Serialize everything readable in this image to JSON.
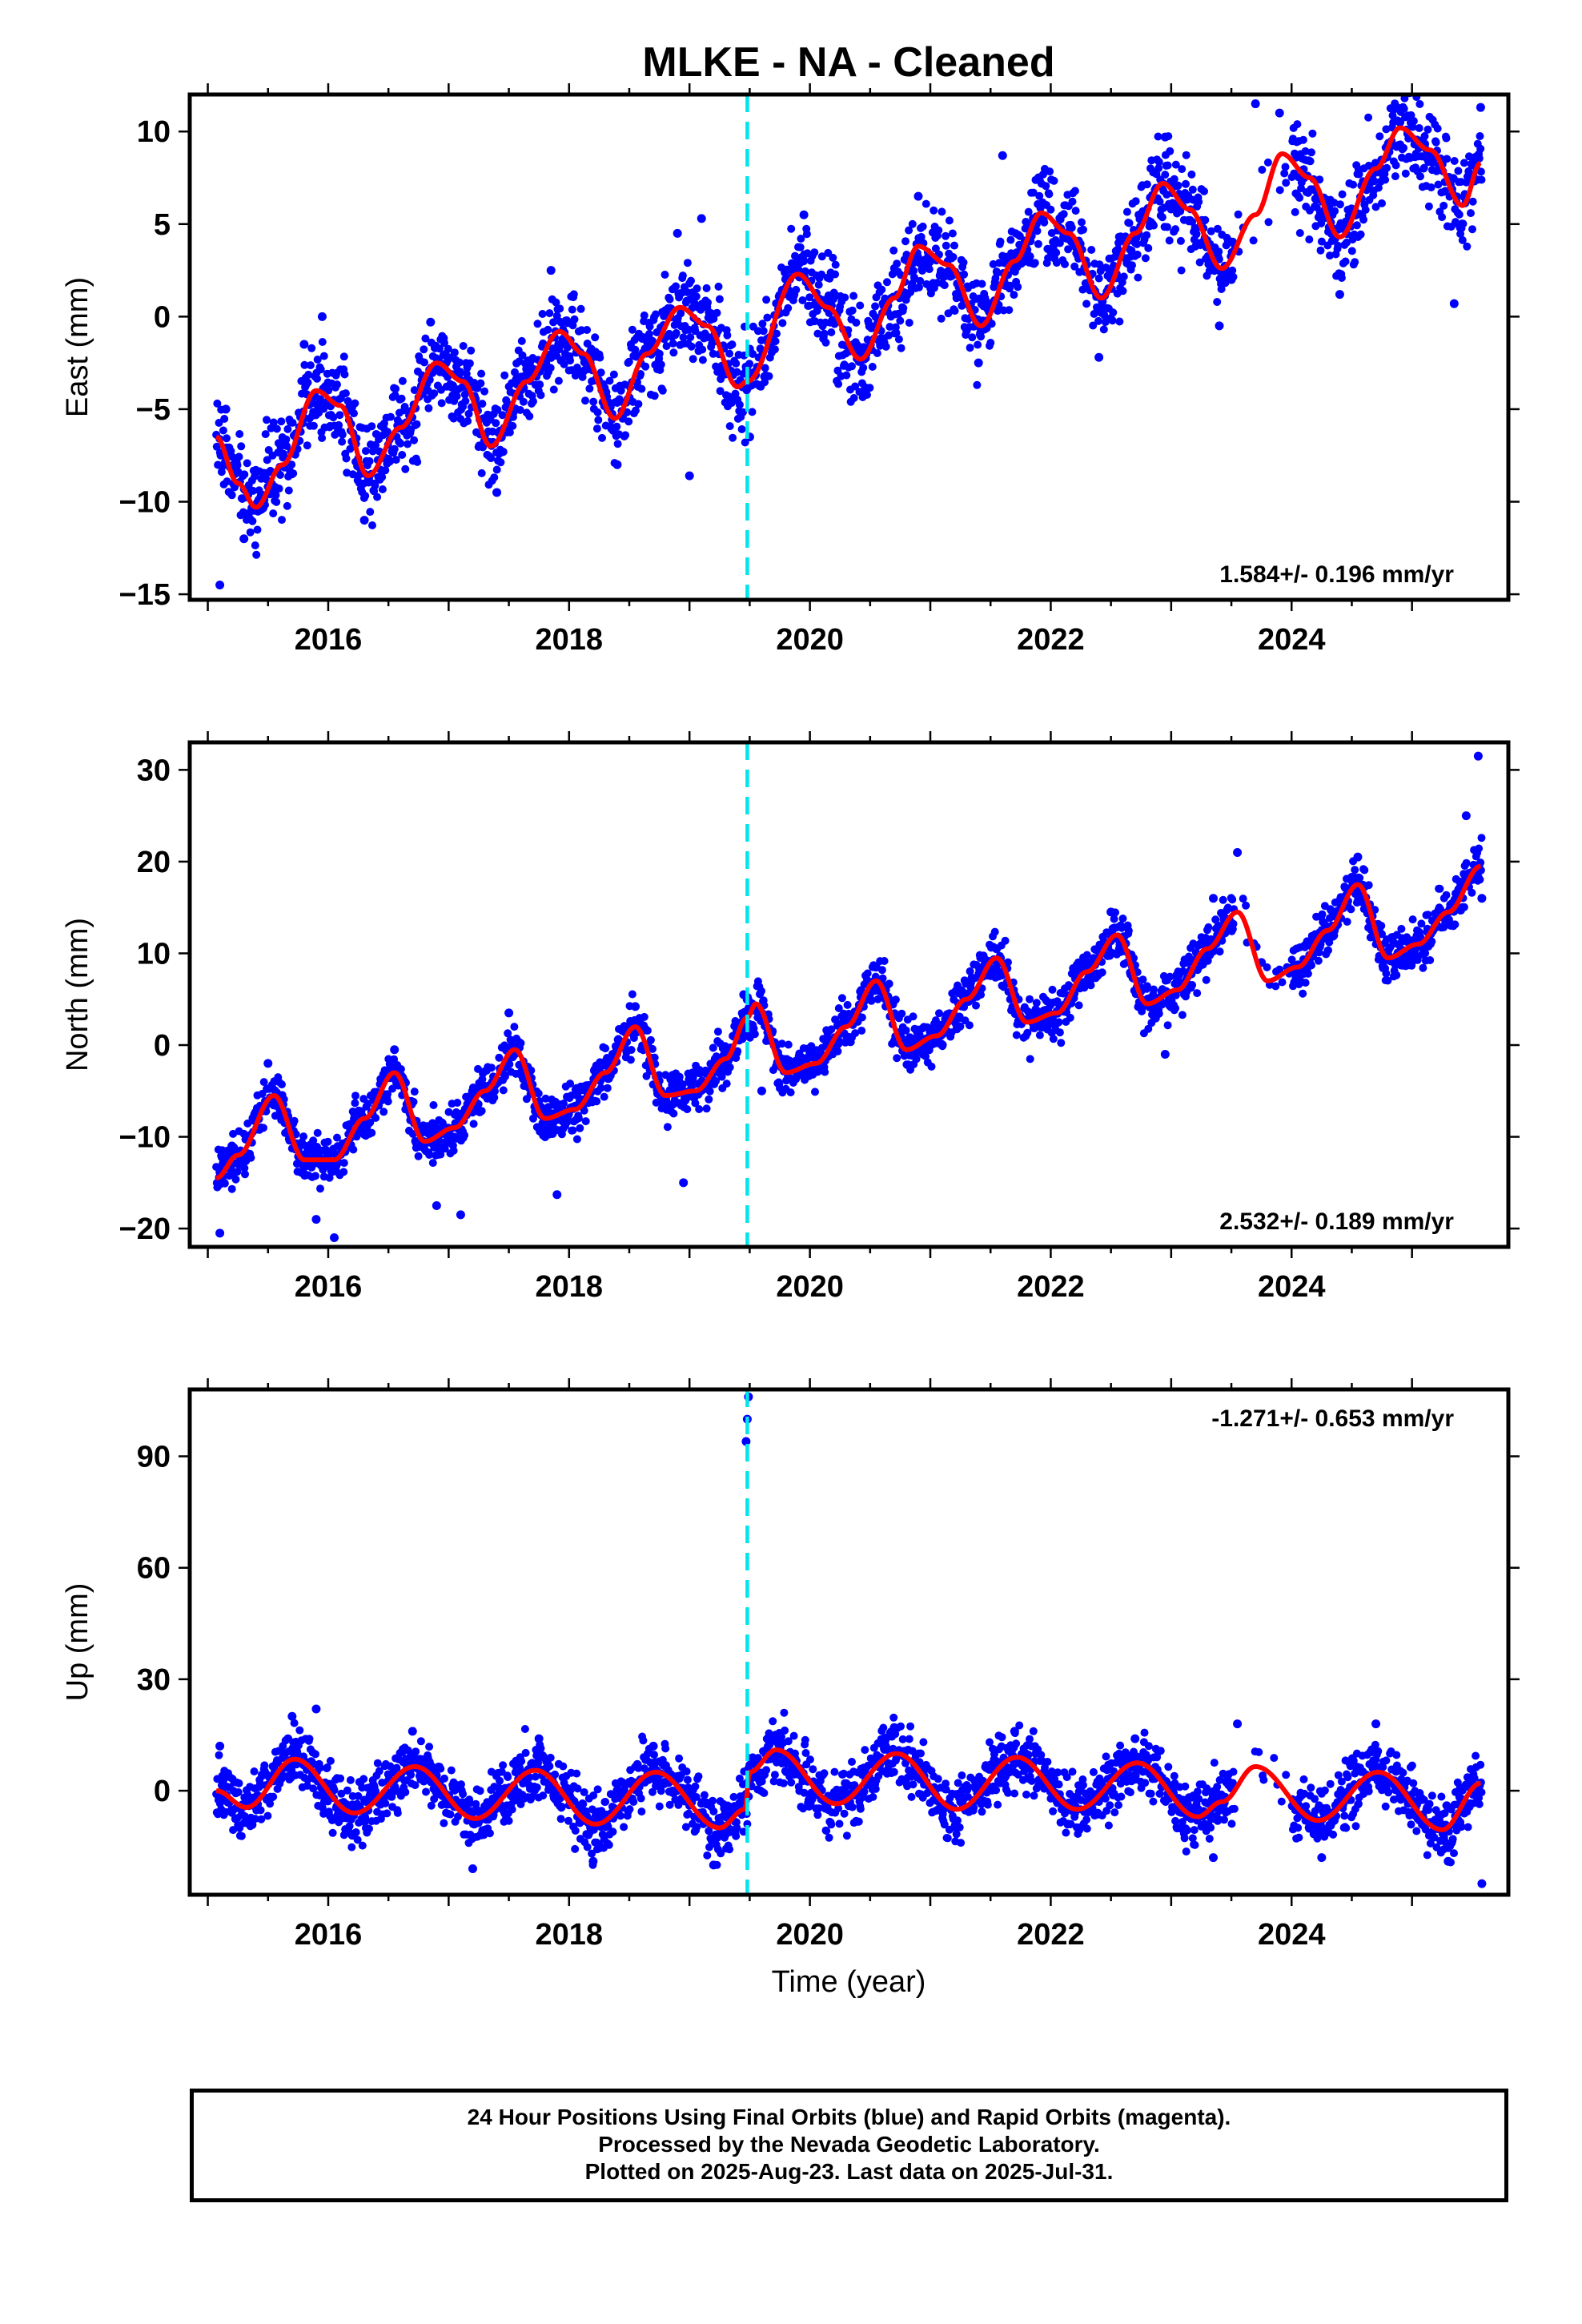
{
  "title": "MLKE  - NA - Cleaned",
  "xlabel": "Time (year)",
  "colors": {
    "points": "#0000ff",
    "model": "#ff0000",
    "break": "#00e5ee",
    "frame": "#000000"
  },
  "chart_data": [
    {
      "type": "scatter",
      "panel": "east",
      "ylabel": "East (mm)",
      "xlim": [
        2014.85,
        2025.8
      ],
      "ylim": [
        -15.3,
        12.0
      ],
      "yticks": [
        -15,
        -10,
        -5,
        0,
        5,
        10
      ],
      "xticks": [
        2016,
        2018,
        2020,
        2022,
        2024
      ],
      "rate_label": "1.584+/- 0.196 mm/yr",
      "rate_position": "bottom-right",
      "break_x": 2019.48,
      "model": {
        "x": [
          2015.07,
          2015.25,
          2015.4,
          2015.62,
          2015.9,
          2016.1,
          2016.33,
          2016.6,
          2016.9,
          2017.12,
          2017.35,
          2017.65,
          2017.92,
          2018.12,
          2018.38,
          2018.65,
          2018.92,
          2019.15,
          2019.4,
          2019.48,
          2019.9,
          2020.15,
          2020.42,
          2020.7,
          2020.9,
          2021.15,
          2021.42,
          2021.7,
          2021.92,
          2022.15,
          2022.42,
          2022.7,
          2022.93,
          2023.15,
          2023.42,
          2023.7,
          2023.92,
          2024.15,
          2024.4,
          2024.7,
          2024.9,
          2025.15,
          2025.42,
          2025.57
        ],
        "y": [
          -6.5,
          -9.0,
          -10.3,
          -8.0,
          -4.0,
          -4.8,
          -8.6,
          -6.0,
          -2.5,
          -3.5,
          -7.0,
          -3.5,
          -0.8,
          -2.0,
          -5.5,
          -2.0,
          0.5,
          -0.5,
          -3.8,
          -3.5,
          2.3,
          0.5,
          -2.3,
          1.0,
          3.8,
          2.8,
          -0.5,
          3.0,
          5.6,
          4.5,
          1.0,
          4.5,
          7.2,
          5.8,
          2.6,
          5.5,
          8.8,
          7.5,
          4.3,
          8.0,
          10.2,
          9.0,
          6.0,
          8.3
        ]
      },
      "points": [
        {
          "x": 2015.1,
          "y": -14.5
        },
        {
          "x": 2015.15,
          "y": -5.0
        },
        {
          "x": 2015.3,
          "y": -12.0
        },
        {
          "x": 2015.8,
          "y": -1.5
        },
        {
          "x": 2015.95,
          "y": 0.0
        },
        {
          "x": 2016.3,
          "y": -11.0
        },
        {
          "x": 2016.85,
          "y": -0.3
        },
        {
          "x": 2017.4,
          "y": -9.5
        },
        {
          "x": 2017.85,
          "y": 2.5
        },
        {
          "x": 2018.4,
          "y": -8.0
        },
        {
          "x": 2018.9,
          "y": 4.5
        },
        {
          "x": 2019.1,
          "y": 5.3
        },
        {
          "x": 2019.0,
          "y": -8.6
        },
        {
          "x": 2019.5,
          "y": -6.5
        },
        {
          "x": 2019.95,
          "y": 5.5
        },
        {
          "x": 2020.45,
          "y": -4.0
        },
        {
          "x": 2020.9,
          "y": 6.5
        },
        {
          "x": 2021.4,
          "y": -2.5
        },
        {
          "x": 2021.6,
          "y": 8.7
        },
        {
          "x": 2021.9,
          "y": 7.5
        },
        {
          "x": 2022.4,
          "y": -2.2
        },
        {
          "x": 2022.95,
          "y": 9.7
        },
        {
          "x": 2023.4,
          "y": -0.5
        },
        {
          "x": 2023.5,
          "y": 2.0
        },
        {
          "x": 2023.7,
          "y": 11.5
        },
        {
          "x": 2023.9,
          "y": 11.0
        },
        {
          "x": 2024.4,
          "y": 1.2
        },
        {
          "x": 2024.9,
          "y": 10.5
        },
        {
          "x": 2025.35,
          "y": 0.7
        },
        {
          "x": 2025.57,
          "y": 11.3
        }
      ]
    },
    {
      "type": "scatter",
      "panel": "north",
      "ylabel": "North (mm)",
      "xlim": [
        2014.85,
        2025.8
      ],
      "ylim": [
        -22.0,
        33.0
      ],
      "yticks": [
        -20,
        -10,
        0,
        10,
        20,
        30
      ],
      "xticks": [
        2016,
        2018,
        2020,
        2022,
        2024
      ],
      "rate_label": "2.532+/- 0.189 mm/yr",
      "rate_position": "bottom-right",
      "break_x": 2019.48,
      "model": {
        "x": [
          2015.07,
          2015.25,
          2015.55,
          2015.8,
          2016.05,
          2016.3,
          2016.55,
          2016.8,
          2017.05,
          2017.3,
          2017.55,
          2017.8,
          2018.05,
          2018.3,
          2018.55,
          2018.8,
          2019.05,
          2019.3,
          2019.48,
          2019.55,
          2019.8,
          2020.05,
          2020.3,
          2020.55,
          2020.8,
          2021.05,
          2021.3,
          2021.55,
          2021.8,
          2022.05,
          2022.3,
          2022.55,
          2022.8,
          2023.05,
          2023.3,
          2023.55,
          2023.8,
          2024.05,
          2024.3,
          2024.55,
          2024.8,
          2025.05,
          2025.3,
          2025.57
        ],
        "y": [
          -14.5,
          -12.0,
          -5.5,
          -12.5,
          -12.5,
          -8.0,
          -3.0,
          -10.5,
          -9.0,
          -5.0,
          -0.5,
          -8.0,
          -7.0,
          -3.0,
          2.0,
          -5.5,
          -5.0,
          -1.5,
          3.0,
          4.5,
          -3.0,
          -2.0,
          2.0,
          7.0,
          -0.5,
          1.0,
          5.0,
          9.5,
          2.5,
          3.5,
          8.0,
          12.0,
          4.5,
          6.0,
          10.5,
          14.5,
          7.0,
          8.5,
          12.5,
          17.5,
          9.5,
          11.0,
          14.5,
          19.5
        ]
      },
      "points": [
        {
          "x": 2015.1,
          "y": -20.5
        },
        {
          "x": 2015.2,
          "y": -11.0
        },
        {
          "x": 2015.5,
          "y": -2.0
        },
        {
          "x": 2015.9,
          "y": -19.0
        },
        {
          "x": 2016.05,
          "y": -21.0
        },
        {
          "x": 2016.55,
          "y": -0.5
        },
        {
          "x": 2016.9,
          "y": -17.5
        },
        {
          "x": 2017.1,
          "y": -18.5
        },
        {
          "x": 2017.5,
          "y": 3.5
        },
        {
          "x": 2017.9,
          "y": -16.3
        },
        {
          "x": 2018.55,
          "y": 4.2
        },
        {
          "x": 2018.95,
          "y": -15.0
        },
        {
          "x": 2019.45,
          "y": 5.5
        },
        {
          "x": 2019.6,
          "y": -5.0
        },
        {
          "x": 2020.55,
          "y": 8.5
        },
        {
          "x": 2021.55,
          "y": 10.5
        },
        {
          "x": 2022.5,
          "y": 14.5
        },
        {
          "x": 2022.95,
          "y": -1.0
        },
        {
          "x": 2023.35,
          "y": 16.0
        },
        {
          "x": 2023.55,
          "y": 21.0
        },
        {
          "x": 2023.75,
          "y": 9.0
        },
        {
          "x": 2024.55,
          "y": 20.5
        },
        {
          "x": 2025.45,
          "y": 25.0
        },
        {
          "x": 2025.55,
          "y": 31.5
        },
        {
          "x": 2025.58,
          "y": 16.0
        }
      ]
    },
    {
      "type": "scatter",
      "panel": "up",
      "ylabel": "Up (mm)",
      "xlim": [
        2014.85,
        2025.8
      ],
      "ylim": [
        -28.0,
        108.0
      ],
      "yticks": [
        0,
        30,
        60,
        90
      ],
      "xticks": [
        2016,
        2018,
        2020,
        2022,
        2024
      ],
      "rate_label": "-1.271+/- 0.653 mm/yr",
      "rate_position": "top-right",
      "break_x": 2019.48,
      "model": {
        "x": [
          2015.07,
          2015.32,
          2015.72,
          2016.22,
          2016.72,
          2017.22,
          2017.72,
          2018.22,
          2018.72,
          2019.25,
          2019.46,
          2019.5,
          2019.72,
          2020.22,
          2020.72,
          2021.22,
          2021.72,
          2022.22,
          2022.72,
          2023.22,
          2023.42,
          2023.7,
          2024.22,
          2024.72,
          2025.25,
          2025.57
        ],
        "y": [
          0.0,
          -4.5,
          8.5,
          -6.0,
          6.5,
          -7.5,
          5.5,
          -9.0,
          5.0,
          -10.0,
          -5.0,
          5.0,
          11.0,
          -3.5,
          10.0,
          -5.0,
          9.0,
          -5.0,
          7.5,
          -7.0,
          -3.0,
          6.5,
          -8.0,
          5.0,
          -10.5,
          2.0
        ]
      },
      "points": [
        {
          "x": 2015.1,
          "y": 12.0
        },
        {
          "x": 2015.7,
          "y": 20.0
        },
        {
          "x": 2015.9,
          "y": 22.0
        },
        {
          "x": 2016.2,
          "y": -12.0
        },
        {
          "x": 2016.7,
          "y": 16.0
        },
        {
          "x": 2017.2,
          "y": -21.0
        },
        {
          "x": 2017.75,
          "y": 14.0
        },
        {
          "x": 2018.2,
          "y": -19.0
        },
        {
          "x": 2018.7,
          "y": 12.0
        },
        {
          "x": 2019.2,
          "y": -20.0
        },
        {
          "x": 2019.47,
          "y": 94.0
        },
        {
          "x": 2019.48,
          "y": 100.0
        },
        {
          "x": 2019.49,
          "y": 106.0
        },
        {
          "x": 2019.7,
          "y": 14.0
        },
        {
          "x": 2020.7,
          "y": 17.0
        },
        {
          "x": 2021.7,
          "y": 16.0
        },
        {
          "x": 2022.7,
          "y": 14.0
        },
        {
          "x": 2023.35,
          "y": -18.0
        },
        {
          "x": 2023.55,
          "y": 18.0
        },
        {
          "x": 2024.25,
          "y": -18.0
        },
        {
          "x": 2024.7,
          "y": 18.0
        },
        {
          "x": 2025.3,
          "y": -19.0
        },
        {
          "x": 2025.58,
          "y": -25.0
        }
      ]
    }
  ],
  "footer": {
    "line1": "24 Hour Positions Using Final Orbits (blue) and Rapid Orbits (magenta).",
    "line2": "Processed by the Nevada Geodetic Laboratory.",
    "line3": "Plotted on 2025-Aug-23. Last data on 2025-Jul-31."
  }
}
